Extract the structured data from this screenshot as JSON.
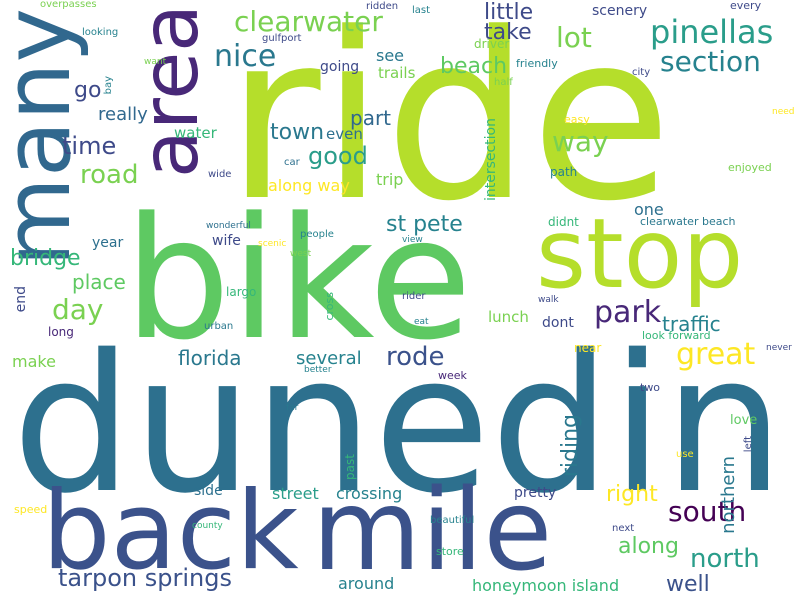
{
  "palette": {
    "dark_purple": "#482878",
    "indigo": "#3e4a89",
    "blue": "#31688e",
    "steel_teal": "#2d708e",
    "teal": "#26828e",
    "sea_green": "#1f9e89",
    "green": "#35b779",
    "light_green": "#6ece58",
    "lime": "#b5de2b",
    "yellow": "#fde725"
  },
  "words": [
    {
      "text": "dunedin",
      "color": "#2d708e"
    },
    {
      "text": "ride",
      "color": "#b5de2b"
    },
    {
      "text": "bike",
      "color": "#5ec962"
    },
    {
      "text": "mile",
      "color": "#3b528b"
    },
    {
      "text": "back",
      "color": "#3b528b"
    },
    {
      "text": "many",
      "color": "#31688e"
    },
    {
      "text": "area",
      "color": "#482878"
    },
    {
      "text": "stop",
      "color": "#b5de2b"
    },
    {
      "text": "pinellas",
      "color": "#2a9d8a"
    },
    {
      "text": "clearwater",
      "color": "#7ad151"
    },
    {
      "text": "section",
      "color": "#26828e"
    },
    {
      "text": "nice",
      "color": "#2a788e"
    },
    {
      "text": "lot",
      "color": "#7ad151"
    },
    {
      "text": "little",
      "color": "#3e4a89"
    },
    {
      "text": "take",
      "color": "#3e4a89"
    },
    {
      "text": "beach",
      "color": "#5ec962"
    },
    {
      "text": "see",
      "color": "#2a788e"
    },
    {
      "text": "trails",
      "color": "#7ad151"
    },
    {
      "text": "going",
      "color": "#3e4a89"
    },
    {
      "text": "go",
      "color": "#3e4a89"
    },
    {
      "text": "really",
      "color": "#31688e"
    },
    {
      "text": "part",
      "color": "#31688e"
    },
    {
      "text": "town",
      "color": "#2a788e"
    },
    {
      "text": "even",
      "color": "#2d708e"
    },
    {
      "text": "time",
      "color": "#3e4a89"
    },
    {
      "text": "water",
      "color": "#35b779"
    },
    {
      "text": "good",
      "color": "#2a9d8a"
    },
    {
      "text": "way",
      "color": "#7ad151"
    },
    {
      "text": "road",
      "color": "#7ad151"
    },
    {
      "text": "trip",
      "color": "#7ad151"
    },
    {
      "text": "along way",
      "color": "#fde725"
    },
    {
      "text": "st pete",
      "color": "#26828e"
    },
    {
      "text": "bridge",
      "color": "#35b779"
    },
    {
      "text": "year",
      "color": "#2d708e"
    },
    {
      "text": "wife",
      "color": "#3e4a89"
    },
    {
      "text": "place",
      "color": "#5ec962"
    },
    {
      "text": "day",
      "color": "#7ad151"
    },
    {
      "text": "park",
      "color": "#482878"
    },
    {
      "text": "traffic",
      "color": "#26828e"
    },
    {
      "text": "great",
      "color": "#fde725"
    },
    {
      "text": "florida",
      "color": "#2a788e"
    },
    {
      "text": "several",
      "color": "#26828e"
    },
    {
      "text": "rode",
      "color": "#3b528b"
    },
    {
      "text": "lunch",
      "color": "#7ad151"
    },
    {
      "text": "dont",
      "color": "#3e4a89"
    },
    {
      "text": "south",
      "color": "#440154"
    },
    {
      "text": "riding",
      "color": "#2a788e"
    },
    {
      "text": "right",
      "color": "#fde725"
    },
    {
      "text": "along",
      "color": "#5ec962"
    },
    {
      "text": "north",
      "color": "#2a9d8a"
    },
    {
      "text": "well",
      "color": "#3b528b"
    },
    {
      "text": "tarpon springs",
      "color": "#3b528b"
    },
    {
      "text": "street",
      "color": "#2a9d8a"
    },
    {
      "text": "crossing",
      "color": "#26828e"
    },
    {
      "text": "around",
      "color": "#26828e"
    },
    {
      "text": "honeymoon island",
      "color": "#35b779"
    },
    {
      "text": "pretty",
      "color": "#3e4a89"
    },
    {
      "text": "side",
      "color": "#2d708e"
    },
    {
      "text": "make",
      "color": "#7ad151"
    },
    {
      "text": "end",
      "color": "#3e4a89"
    },
    {
      "text": "long",
      "color": "#482878"
    },
    {
      "text": "largo",
      "color": "#35b779"
    },
    {
      "text": "one",
      "color": "#2d708e"
    },
    {
      "text": "intersection",
      "color": "#35b779"
    },
    {
      "text": "scenery",
      "color": "#3e4a89"
    },
    {
      "text": "driver",
      "color": "#7ad151"
    },
    {
      "text": "friendly",
      "color": "#26828e"
    },
    {
      "text": "every",
      "color": "#3e4a89"
    },
    {
      "text": "overpasses",
      "color": "#7ad151"
    },
    {
      "text": "looking",
      "color": "#26828e"
    },
    {
      "text": "gulfport",
      "color": "#3e4a89"
    },
    {
      "text": "ridden",
      "color": "#3e4a89"
    },
    {
      "text": "last",
      "color": "#26828e"
    },
    {
      "text": "want",
      "color": "#7ad151"
    },
    {
      "text": "bay",
      "color": "#26828e"
    },
    {
      "text": "half",
      "color": "#7ad151"
    },
    {
      "text": "city",
      "color": "#3e4a89"
    },
    {
      "text": "easy",
      "color": "#fde725"
    },
    {
      "text": "need",
      "color": "#fde725"
    },
    {
      "text": "path",
      "color": "#26828e"
    },
    {
      "text": "enjoyed",
      "color": "#7ad151"
    },
    {
      "text": "didnt",
      "color": "#35b779"
    },
    {
      "text": "clearwater beach",
      "color": "#2a788e"
    },
    {
      "text": "car",
      "color": "#2d708e"
    },
    {
      "text": "wide",
      "color": "#3e4a89"
    },
    {
      "text": "wonderful",
      "color": "#2d708e"
    },
    {
      "text": "scenic",
      "color": "#fde725"
    },
    {
      "text": "people",
      "color": "#26828e"
    },
    {
      "text": "west",
      "color": "#7ad151"
    },
    {
      "text": "view",
      "color": "#26828e"
    },
    {
      "text": "cross",
      "color": "#35b779"
    },
    {
      "text": "urban",
      "color": "#2a788e"
    },
    {
      "text": "better",
      "color": "#26828e"
    },
    {
      "text": "rider",
      "color": "#3e4a89"
    },
    {
      "text": "eat",
      "color": "#26828e"
    },
    {
      "text": "walk",
      "color": "#3e4a89"
    },
    {
      "text": "look forward",
      "color": "#35b779"
    },
    {
      "text": "never",
      "color": "#3e4a89"
    },
    {
      "text": "near",
      "color": "#fde725"
    },
    {
      "text": "week",
      "color": "#482878"
    },
    {
      "text": "two",
      "color": "#3e4a89"
    },
    {
      "text": "far",
      "color": "#2a788e"
    },
    {
      "text": "love",
      "color": "#5ec962"
    },
    {
      "text": "much",
      "color": "#7ad151"
    },
    {
      "text": "past",
      "color": "#35b779"
    },
    {
      "text": "use",
      "color": "#fde725"
    },
    {
      "text": "northern",
      "color": "#2a788e"
    },
    {
      "text": "left",
      "color": "#3e4a89"
    },
    {
      "text": "speed",
      "color": "#fde725"
    },
    {
      "text": "county",
      "color": "#35b779"
    },
    {
      "text": "beautiful",
      "color": "#26828e"
    },
    {
      "text": "next",
      "color": "#3e4a89"
    },
    {
      "text": "store",
      "color": "#35b779"
    }
  ]
}
